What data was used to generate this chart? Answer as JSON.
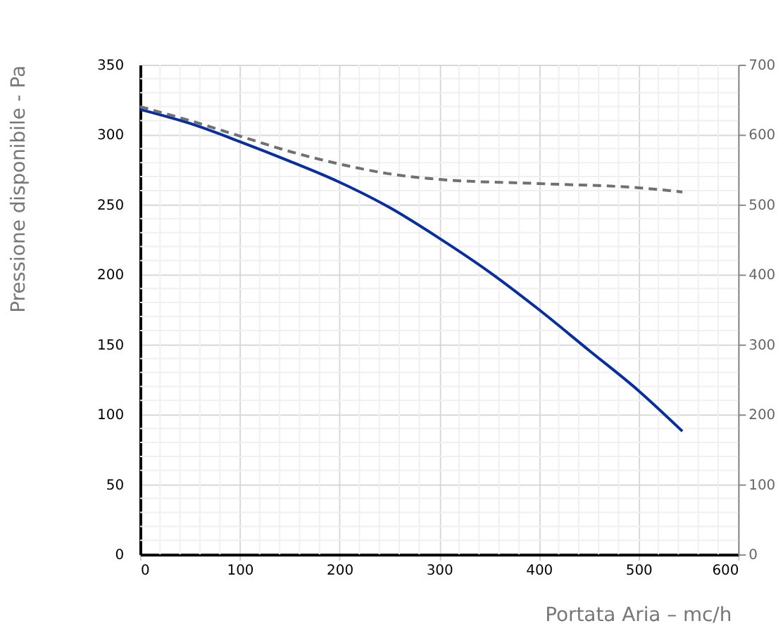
{
  "chart_data": {
    "type": "line",
    "xlabel": "Portata Aria – mc/h",
    "ylabel": "Pressione disponibile - Pa",
    "xlim": [
      0,
      600
    ],
    "xticks": [
      0,
      100,
      200,
      300,
      400,
      500,
      600
    ],
    "ylim": [
      0,
      350
    ],
    "yticks": [
      0,
      50,
      100,
      150,
      200,
      250,
      300,
      350
    ],
    "y2lim": [
      0,
      700
    ],
    "y2ticks": [
      0,
      100,
      200,
      300,
      400,
      500,
      600,
      700
    ],
    "grid": true,
    "line_style": "solid",
    "series": [
      {
        "color": "#0a2f96",
        "x": [
          0,
          50,
          100,
          150,
          200,
          250,
          300,
          350,
          400,
          450,
          500,
          544
        ],
        "values": [
          318,
          308,
          295,
          281,
          266,
          248,
          226,
          202,
          175,
          146,
          117,
          88
        ]
      },
      {
        "color": "#707070",
        "axis": "y2",
        "line_style": "dashed",
        "x": [
          0,
          50,
          100,
          150,
          200,
          250,
          300,
          400,
          500,
          544
        ],
        "values": [
          640,
          620,
          598,
          576,
          558,
          544,
          536,
          530,
          524,
          518
        ]
      }
    ]
  }
}
